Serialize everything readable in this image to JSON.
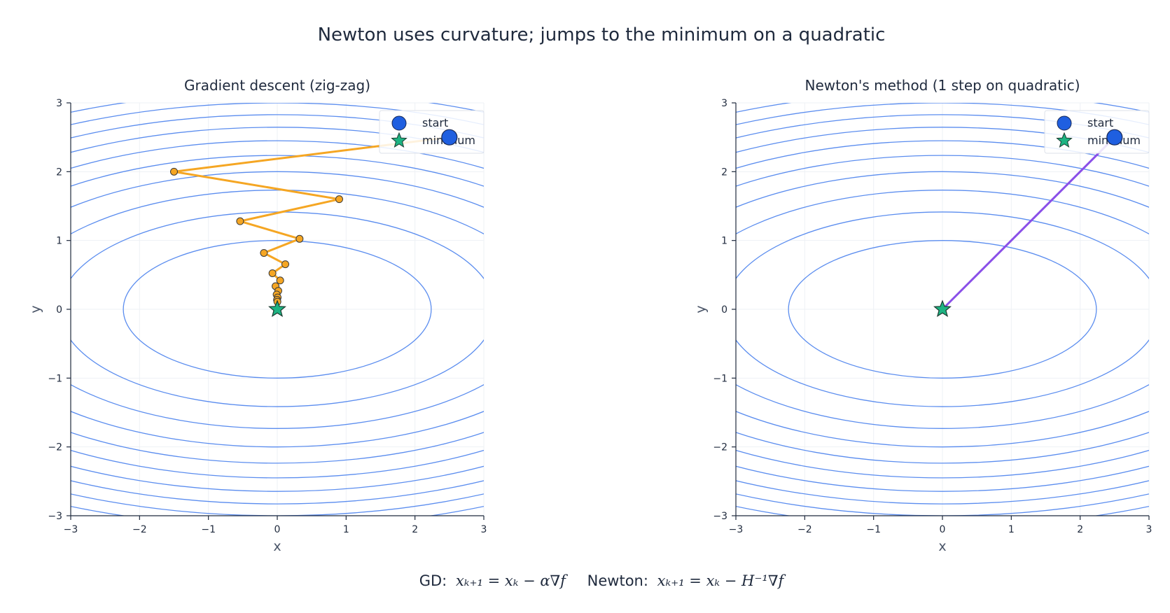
{
  "figure": {
    "title": "Newton uses curvature; jumps to the minimum on a quadratic",
    "footer_gd_label": "GD:",
    "footer_gd_formula": "xₖ₊₁ = xₖ − α∇f",
    "footer_newton_label": "Newton:",
    "footer_newton_formula": "xₖ₊₁ = xₖ − H⁻¹∇f"
  },
  "colors": {
    "contour": "#5b8def",
    "gd_path": "#f5a623",
    "newton_path": "#8a4fe8",
    "start_marker": "#1f5fe0",
    "minimum_marker": "#1db382",
    "grid": "#eef1f5",
    "axis": "#1f2a3d"
  },
  "chart_data": [
    {
      "type": "line",
      "title": "Gradient descent (zig-zag)",
      "xlabel": "x",
      "ylabel": "y",
      "xlim": [
        -3,
        3
      ],
      "ylim": [
        -3,
        3
      ],
      "xticks": [
        -3,
        -2,
        -1,
        0,
        1,
        2,
        3
      ],
      "yticks": [
        -3,
        -2,
        -1,
        0,
        1,
        2,
        3
      ],
      "xtick_labels": [
        "−3",
        "−2",
        "−1",
        "0",
        "1",
        "2",
        "3"
      ],
      "ytick_labels": [
        "−3",
        "−2",
        "−1",
        "0",
        "1",
        "2",
        "3"
      ],
      "grid": true,
      "legend_position": "top-right",
      "legend": [
        {
          "label": "start",
          "marker": "circle",
          "color": "#1f5fe0"
        },
        {
          "label": "minimum",
          "marker": "star",
          "color": "#1db382"
        }
      ],
      "contours": {
        "function": "x^2/10 + y^2/2",
        "a": 10,
        "b": 2,
        "levels": [
          0.5,
          1,
          1.5,
          2,
          2.5,
          3,
          3.5,
          4,
          4.5,
          5,
          5.5,
          6,
          6.5,
          7,
          7.5,
          8,
          8.5,
          9,
          9.5,
          10
        ]
      },
      "start": {
        "x": 2.5,
        "y": 2.5
      },
      "minimum": {
        "x": 0,
        "y": 0
      },
      "series": [
        {
          "x": [
            2.5,
            -1.5,
            0.9,
            -0.54,
            0.324,
            -0.194,
            0.117,
            -0.07,
            0.042,
            -0.025,
            0.015,
            -0.009,
            0.0054,
            -0.0033,
            0.0019,
            0
          ],
          "y": [
            2.5,
            2.0,
            1.6,
            1.28,
            1.024,
            0.819,
            0.655,
            0.524,
            0.419,
            0.336,
            0.268,
            0.215,
            0.172,
            0.137,
            0.11,
            0
          ]
        }
      ]
    },
    {
      "type": "line",
      "title": "Newton's method (1 step on quadratic)",
      "xlabel": "x",
      "ylabel": "y",
      "xlim": [
        -3,
        3
      ],
      "ylim": [
        -3,
        3
      ],
      "xticks": [
        -3,
        -2,
        -1,
        0,
        1,
        2,
        3
      ],
      "yticks": [
        -3,
        -2,
        -1,
        0,
        1,
        2,
        3
      ],
      "xtick_labels": [
        "−3",
        "−2",
        "−1",
        "0",
        "1",
        "2",
        "3"
      ],
      "ytick_labels": [
        "−3",
        "−2",
        "−1",
        "0",
        "1",
        "2",
        "3"
      ],
      "grid": true,
      "legend_position": "top-right",
      "legend": [
        {
          "label": "start",
          "marker": "circle",
          "color": "#1f5fe0"
        },
        {
          "label": "minimum",
          "marker": "star",
          "color": "#1db382"
        }
      ],
      "contours": {
        "function": "x^2/10 + y^2/2",
        "a": 10,
        "b": 2,
        "levels": [
          0.5,
          1,
          1.5,
          2,
          2.5,
          3,
          3.5,
          4,
          4.5,
          5,
          5.5,
          6,
          6.5,
          7,
          7.5,
          8,
          8.5,
          9,
          9.5,
          10
        ]
      },
      "start": {
        "x": 2.5,
        "y": 2.5
      },
      "minimum": {
        "x": 0,
        "y": 0
      },
      "series": [
        {
          "x": [
            2.5,
            0
          ],
          "y": [
            2.5,
            0
          ]
        }
      ]
    }
  ]
}
